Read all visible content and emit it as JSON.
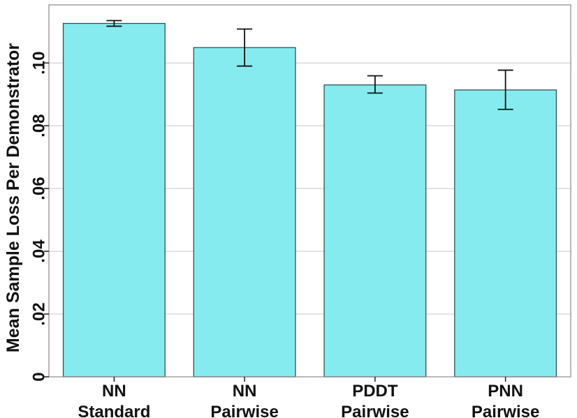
{
  "chart_data": {
    "type": "bar",
    "title": "",
    "xlabel": "",
    "ylabel": "Mean  Sample Loss Per Demonstrator",
    "categories": [
      [
        "NN",
        "Standard"
      ],
      [
        "NN",
        "Pairwise"
      ],
      [
        "PDDT",
        "Pairwise"
      ],
      [
        "PNN",
        "Pairwise"
      ]
    ],
    "values": [
      0.1126,
      0.1049,
      0.093,
      0.0914
    ],
    "error_low": [
      0.1117,
      0.099,
      0.0904,
      0.0852
    ],
    "error_high": [
      0.1135,
      0.1108,
      0.0959,
      0.0977
    ],
    "ylim": [
      0,
      0.1185
    ],
    "yticks": [
      0,
      0.02,
      0.04,
      0.06,
      0.08,
      0.1
    ],
    "ytick_labels": [
      "0",
      ".02",
      ".04",
      ".06",
      ".08",
      ".10"
    ],
    "grid": true,
    "colors": {
      "bar_fill": "#86ebef",
      "bar_stroke": "#2f5257",
      "grid": "#c8c8c8",
      "frame": "#8a8a8a",
      "error": "#111111"
    }
  }
}
